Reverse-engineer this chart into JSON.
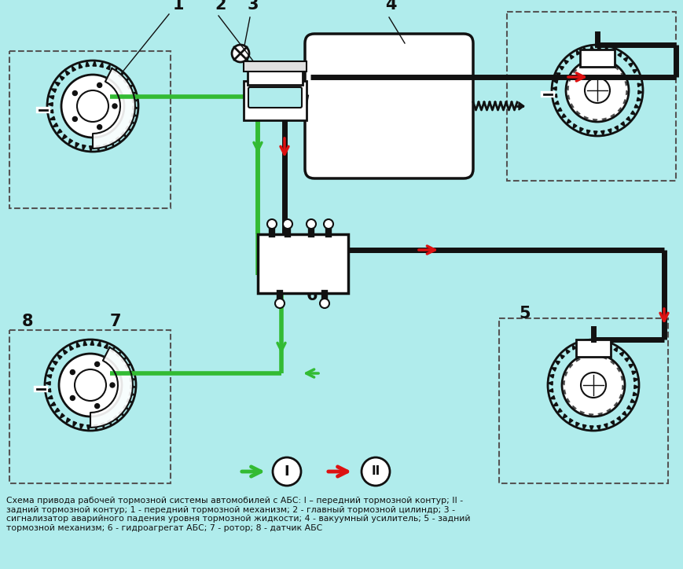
{
  "bg_color": "#b0ecec",
  "title_text": "Схема привода рабочей тормозной системы автомобилей с АБС: I – передний тормозной контур; II -\nзадний тормозной контур; 1 - передний тормозной механизм; 2 - главный тормозной цилиндр; 3 -\nсигнализатор аварийного падения уровня тормозной жидкости; 4 - вакуумный усилитель; 5 - задний\nтормозной механизм; 6 - гидроагрегат АБС; 7 - ротор; 8 - датчик АБС",
  "green_color": "#33bb33",
  "red_color": "#dd1111",
  "black_color": "#111111",
  "white_color": "#ffffff",
  "gray_color": "#cccccc"
}
